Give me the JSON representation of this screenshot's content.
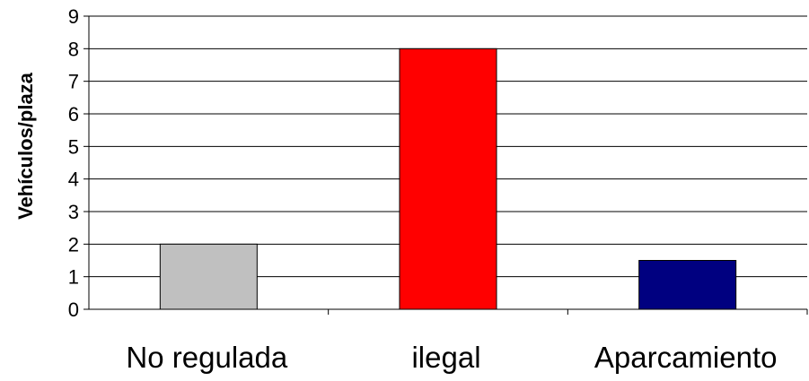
{
  "chart_data": {
    "type": "bar",
    "categories": [
      "No regulada",
      "ilegal",
      "Aparcamiento"
    ],
    "values": [
      2,
      8,
      1.5
    ],
    "bar_colors": [
      "#c0c0c0",
      "#ff0000",
      "#000080"
    ],
    "ylabel": "Vehículos/plaza",
    "ylim": [
      0,
      9
    ],
    "yticks": [
      "0",
      "1",
      "2",
      "3",
      "4",
      "5",
      "6",
      "7",
      "8",
      "9"
    ],
    "grid": true,
    "legend": "none"
  }
}
